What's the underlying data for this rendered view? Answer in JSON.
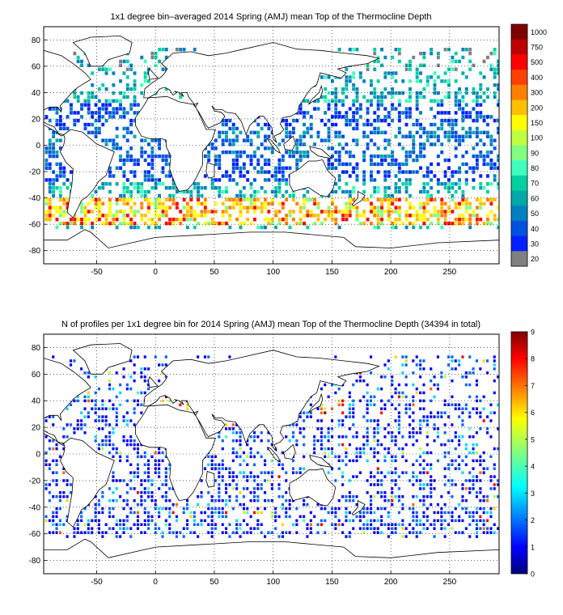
{
  "figure": {
    "colors": {
      "ocean_bg": "#ffffff",
      "land_outline": "#000000",
      "grid": "#000000",
      "nan_grey": "#7f7f7f"
    }
  },
  "chart_data": [
    {
      "type": "heatmap",
      "title": "1x1 degree bin–averaged 2014 Spring (AMJ) mean Top of the Thermocline Depth",
      "xlabel": "",
      "ylabel": "",
      "xlim": [
        -95,
        292
      ],
      "ylim": [
        -90,
        90
      ],
      "xticks": [
        "-50",
        "0",
        "50",
        "100",
        "150",
        "200",
        "250"
      ],
      "xtick_values": [
        -50,
        0,
        50,
        100,
        150,
        200,
        250
      ],
      "yticks": [
        "80",
        "60",
        "40",
        "20",
        "0",
        "-20",
        "-40",
        "-60",
        "-80"
      ],
      "ytick_values": [
        80,
        60,
        40,
        20,
        0,
        -20,
        -40,
        -60,
        -80
      ],
      "grid": true,
      "colorbar": {
        "labels": [
          "1000",
          "750",
          "500",
          "400",
          "300",
          "200",
          "150",
          "100",
          "90",
          "80",
          "70",
          "60",
          "50",
          "40",
          "30",
          "20"
        ],
        "colors": [
          "#7f0000",
          "#bf0000",
          "#ff0000",
          "#ff4000",
          "#ff8000",
          "#ffbf00",
          "#ffff00",
          "#bfff40",
          "#80ff80",
          "#40ffbf",
          "#00d0a0",
          "#00a8a8",
          "#0080c0",
          "#0050e0",
          "#0020ff",
          "#808080"
        ]
      },
      "summary": "Bin-averaged depths mostly 30-100 m across tropics and mid-latitudes; band of 200-750 m values near 45-60S in the Southern Ocean."
    },
    {
      "type": "heatmap",
      "title": "N of profiles per 1x1 degree bin for 2014 Spring (AMJ) mean Top of the Thermocline Depth  (34394 in total)",
      "xlabel": "",
      "ylabel": "",
      "xlim": [
        -95,
        292
      ],
      "ylim": [
        -90,
        90
      ],
      "xticks": [
        "-50",
        "0",
        "50",
        "100",
        "150",
        "200",
        "250"
      ],
      "xtick_values": [
        -50,
        0,
        50,
        100,
        150,
        200,
        250
      ],
      "yticks": [
        "80",
        "60",
        "40",
        "20",
        "0",
        "-20",
        "-40",
        "-60",
        "-80"
      ],
      "ytick_values": [
        80,
        60,
        40,
        20,
        0,
        -20,
        -40,
        -60,
        -80
      ],
      "grid": true,
      "total_profiles": 34394,
      "colorbar": {
        "min": 0,
        "max": 9,
        "tick_labels": [
          "9",
          "8",
          "7",
          "6",
          "5",
          "4",
          "3",
          "2",
          "1",
          "0"
        ],
        "colormap": "jet"
      },
      "summary": "Most bins contain 1-2 profiles; hot spots of 6-9 profiles in the Mediterranean, Red Sea, Kuroshio region and near 45S, 90E."
    }
  ]
}
